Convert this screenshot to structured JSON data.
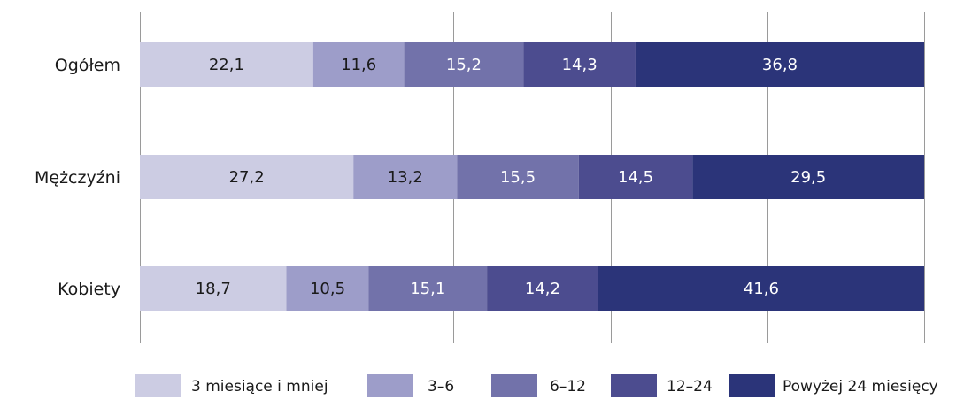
{
  "chart_data": {
    "type": "bar",
    "orientation": "horizontal",
    "stacked": true,
    "categories": [
      "Ogółem",
      "Mężczyźni",
      "Kobiety"
    ],
    "series": [
      {
        "name": "3 miesiące i mniej",
        "values": [
          22.1,
          27.2,
          18.7
        ],
        "color": "#cccce3",
        "label_color": "#1a1a1a"
      },
      {
        "name": "3–6",
        "values": [
          11.6,
          13.2,
          10.5
        ],
        "color": "#9d9dc9",
        "label_color": "#1a1a1a"
      },
      {
        "name": "6–12",
        "values": [
          15.2,
          15.5,
          15.1
        ],
        "color": "#7272aa",
        "label_color": "#ffffff"
      },
      {
        "name": "12–24",
        "values": [
          14.3,
          14.5,
          14.2
        ],
        "color": "#4c4c8f",
        "label_color": "#ffffff"
      },
      {
        "name": "Powyżej 24 miesięcy",
        "values": [
          36.8,
          29.5,
          41.6
        ],
        "color": "#2b3479",
        "label_color": "#ffffff"
      }
    ],
    "xlim": [
      0,
      100
    ],
    "grid": true,
    "grid_ticks": [
      0,
      20,
      40,
      60,
      80,
      100
    ],
    "legend_position": "bottom",
    "title": "",
    "xlabel": "",
    "ylabel": ""
  }
}
